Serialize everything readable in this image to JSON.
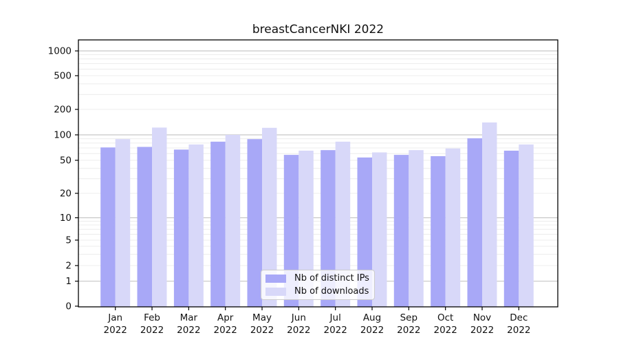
{
  "title": "breastCancerNKI 2022",
  "colors": {
    "ips_bar": "#a8a8f7",
    "downloads_bar": "#d8d8f9",
    "major_grid": "#c6c6c6",
    "minor_grid": "#ececec",
    "axis": "#000000",
    "text": "#111111"
  },
  "legend": {
    "items": [
      {
        "label": "Nb of distinct IPs",
        "color": "#a8a8f7"
      },
      {
        "label": "Nb of downloads",
        "color": "#d8d8f9"
      }
    ]
  },
  "chart_data": {
    "type": "bar",
    "title": "breastCancerNKI 2022",
    "categories": [
      "Jan 2022",
      "Feb 2022",
      "Mar 2022",
      "Apr 2022",
      "May 2022",
      "Jun 2022",
      "Jul 2022",
      "Aug 2022",
      "Sep 2022",
      "Oct 2022",
      "Nov 2022",
      "Dec 2022"
    ],
    "series": [
      {
        "name": "Nb of distinct IPs",
        "color": "#a8a8f7",
        "values": [
          71,
          72,
          67,
          83,
          89,
          58,
          66,
          54,
          58,
          56,
          91,
          65
        ]
      },
      {
        "name": "Nb of downloads",
        "color": "#d8d8f9",
        "values": [
          89,
          122,
          77,
          100,
          121,
          65,
          83,
          62,
          66,
          69,
          140,
          77
        ]
      }
    ],
    "xlabel": "",
    "ylabel": "",
    "yscale": "symlog",
    "yticks": [
      0,
      1,
      2,
      5,
      10,
      20,
      50,
      100,
      200,
      500,
      1000
    ],
    "ylim": [
      0,
      1300
    ],
    "grid": true,
    "legend_position": "lower center"
  }
}
